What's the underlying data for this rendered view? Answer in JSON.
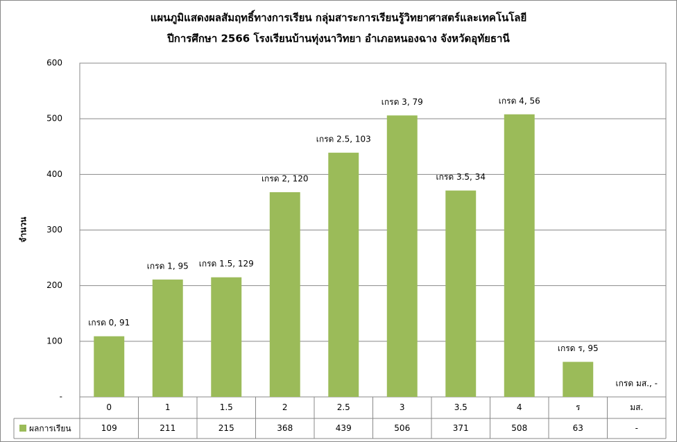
{
  "chart_data": {
    "type": "bar",
    "title": [
      "แผนภูมิแสดงผลสัมฤทธิ์ทางการเรียน กลุ่มสาระการเรียนรู้วิทยาศาสตร์และเทคโนโลยี",
      "ปีการศึกษา 2566 โรงเรียนบ้านทุ่งนาวิทยา อำเภอหนองฉาง จังหวัดอุทัยธานี"
    ],
    "y_label": "จำนวน",
    "categories": [
      "0",
      "1",
      "1.5",
      "2",
      "2.5",
      "3",
      "3.5",
      "4",
      "ร",
      "มส."
    ],
    "series": [
      {
        "name": "ผลการเรียน",
        "color": "#9bbb59",
        "values": [
          109,
          211,
          215,
          368,
          439,
          506,
          371,
          508,
          63,
          null
        ],
        "value_labels": [
          "109",
          "211",
          "215",
          "368",
          "439",
          "506",
          "371",
          "508",
          "63",
          "-"
        ]
      }
    ],
    "annotations": [
      "เกรด 0,  91",
      "เกรด 1,  95",
      "เกรด 1.5,  129",
      "เกรด 2,  120",
      "เกรด 2.5,  103",
      "เกรด 3,  79",
      "เกรด 3.5,  34",
      "เกรด  4,  56",
      "เกรด ร,  95",
      "เกรด มส.,  -"
    ],
    "ylim": [
      0,
      600
    ],
    "yticks": [
      {
        "value": 0,
        "label": "-"
      },
      100,
      200,
      300,
      400,
      500,
      600
    ],
    "grid": true
  }
}
